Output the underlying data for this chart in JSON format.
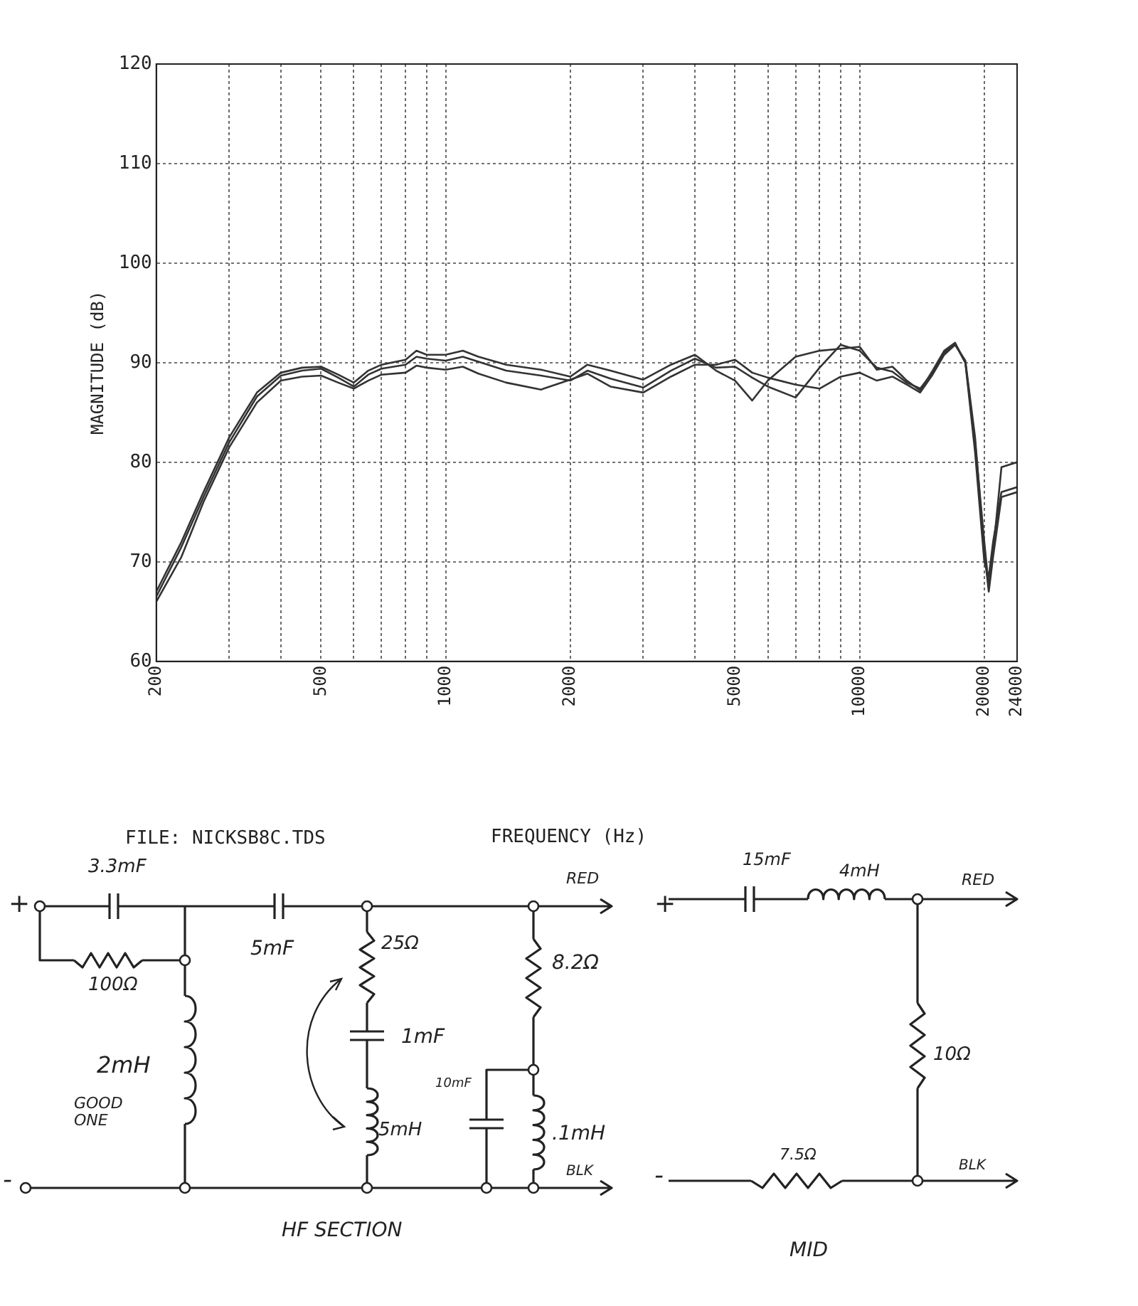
{
  "chart_data": {
    "type": "line",
    "ylabel": "MAGNITUDE (dB)",
    "log": "x",
    "grid": true,
    "legend": false,
    "marker": "none",
    "line_style": "solid",
    "xlim": [
      200,
      24000
    ],
    "ylim": [
      60,
      120
    ],
    "xticks": [
      200,
      {
        "value": 300,
        "label": null
      },
      {
        "value": 400,
        "label": null
      },
      500,
      {
        "value": 600,
        "label": null
      },
      {
        "value": 700,
        "label": null
      },
      {
        "value": 800,
        "label": null
      },
      {
        "value": 900,
        "label": null
      },
      1000,
      2000,
      {
        "value": 3000,
        "label": null
      },
      {
        "value": 4000,
        "label": null
      },
      5000,
      {
        "value": 6000,
        "label": null
      },
      {
        "value": 7000,
        "label": null
      },
      {
        "value": 8000,
        "label": null
      },
      {
        "value": 9000,
        "label": null
      },
      10000,
      20000,
      24000
    ],
    "yticks": [
      60,
      70,
      80,
      90,
      100,
      110,
      120
    ],
    "x": [
      200,
      230,
      260,
      300,
      350,
      400,
      450,
      500,
      550,
      600,
      650,
      700,
      800,
      850,
      900,
      1000,
      1100,
      1200,
      1400,
      1700,
      2000,
      2200,
      2500,
      3000,
      3500,
      4000,
      4500,
      5000,
      5500,
      6000,
      7000,
      8000,
      9000,
      10000,
      11000,
      12000,
      13000,
      14000,
      15000,
      16000,
      17000,
      18000,
      19000,
      20000,
      20500,
      21000,
      22000,
      24000
    ],
    "series": [
      {
        "color": "#333333",
        "values": [
          67,
          72,
          77,
          82.5,
          87,
          89,
          89.5,
          89.6,
          88.8,
          88,
          89.2,
          89.8,
          90.3,
          91.2,
          90.8,
          90.8,
          91.2,
          90.6,
          89.8,
          89.3,
          88.6,
          89.8,
          89.2,
          88.3,
          89.8,
          90.8,
          89.2,
          88.2,
          86.2,
          88.2,
          90.6,
          91.2,
          91.4,
          91.6,
          89.3,
          89.6,
          88.2,
          87.2,
          89.2,
          91.2,
          92,
          90,
          82,
          72,
          67.5,
          71,
          79.5,
          80
        ]
      },
      {
        "color": "#333333",
        "values": [
          66.5,
          71.5,
          76.5,
          82,
          86.6,
          88.7,
          89.2,
          89.4,
          88.5,
          87.6,
          88.8,
          89.4,
          89.8,
          90.6,
          90.4,
          90.2,
          90.6,
          90.1,
          89.2,
          88.7,
          88.2,
          89.2,
          88.4,
          87.5,
          89.2,
          90.4,
          89.5,
          89.6,
          88.5,
          87.6,
          86.5,
          89.5,
          91.8,
          91.2,
          89.5,
          89.1,
          88,
          87.4,
          89,
          91,
          91.9,
          90,
          81,
          70,
          68.5,
          72,
          77,
          77.5
        ]
      },
      {
        "color": "#333333",
        "values": [
          66,
          70.5,
          76,
          81.5,
          86,
          88.2,
          88.6,
          88.7,
          88,
          87.4,
          88.2,
          88.8,
          89,
          89.7,
          89.5,
          89.3,
          89.6,
          88.9,
          88,
          87.3,
          88.3,
          88.9,
          87.6,
          87,
          88.6,
          89.8,
          89.8,
          90.3,
          89,
          88.5,
          87.8,
          87.4,
          88.6,
          89,
          88.2,
          88.6,
          87.8,
          87,
          88.8,
          90.8,
          91.8,
          90.2,
          82.5,
          71,
          67,
          70.5,
          76.5,
          77
        ]
      }
    ],
    "annotations": [
      "FILE: NICKSB8C.TDS",
      "3.3mF",
      "100Ω",
      "5mF",
      "25Ω",
      "1mF",
      "2mH",
      "GOOD ONE",
      "5mH",
      "10mF",
      ".1mH",
      "8.2Ω",
      "RED",
      "BLK",
      "HF SECTION",
      "15mF",
      "4mH",
      "RED",
      "10Ω",
      "7.5Ω",
      "BLK",
      "MID",
      "+",
      "-",
      "+",
      "-",
      "FREQUENCY (Hz)"
    ]
  }
}
